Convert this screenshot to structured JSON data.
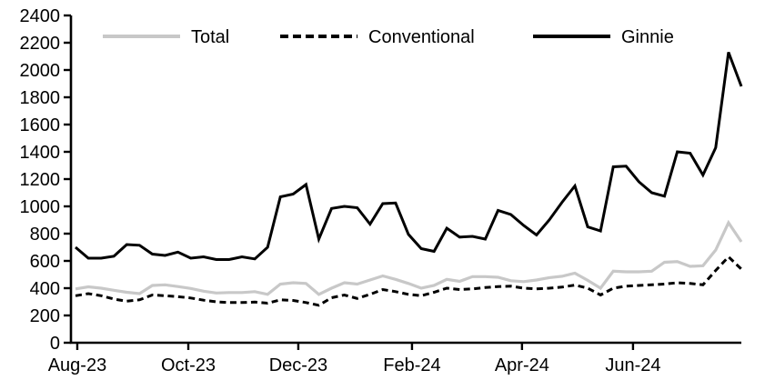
{
  "chart_data": {
    "type": "line",
    "title": "",
    "x_unit": "weekly",
    "n_points": 53,
    "ylim": [
      0,
      2400
    ],
    "ytick_step": 200,
    "grid": "off",
    "legend_position": "top-inside",
    "x_tick_labels": [
      "Aug-23",
      "Oct-23",
      "Dec-23",
      "Feb-24",
      "Apr-24",
      "Jun-24"
    ],
    "x_tick_week_positions": [
      0.14,
      8.81,
      17.4,
      26.28,
      34.87,
      43.54
    ],
    "series": [
      {
        "name": "Total",
        "color": "#c8c8c8",
        "dash": null,
        "width": 3.2,
        "values": [
          395,
          410,
          400,
          385,
          370,
          360,
          420,
          425,
          412,
          398,
          378,
          365,
          368,
          368,
          375,
          355,
          430,
          440,
          435,
          355,
          400,
          440,
          430,
          460,
          490,
          465,
          435,
          400,
          420,
          465,
          450,
          485,
          485,
          480,
          455,
          448,
          460,
          477,
          487,
          510,
          457,
          400,
          525,
          520,
          520,
          525,
          590,
          595,
          560,
          565,
          680,
          880,
          740
        ]
      },
      {
        "name": "Conventional",
        "color": "#000000",
        "dash": "7 4.5",
        "width": 3,
        "values": [
          345,
          360,
          345,
          320,
          305,
          315,
          350,
          345,
          338,
          328,
          312,
          300,
          295,
          295,
          298,
          290,
          315,
          310,
          295,
          275,
          330,
          350,
          325,
          355,
          390,
          375,
          355,
          345,
          370,
          400,
          390,
          395,
          405,
          412,
          415,
          400,
          395,
          400,
          408,
          423,
          400,
          350,
          400,
          415,
          420,
          425,
          430,
          440,
          435,
          425,
          530,
          630,
          540
        ]
      },
      {
        "name": "Ginnie",
        "color": "#000000",
        "dash": null,
        "width": 3,
        "values": [
          700,
          620,
          620,
          635,
          720,
          715,
          650,
          640,
          665,
          620,
          630,
          610,
          610,
          630,
          615,
          700,
          1070,
          1090,
          1160,
          760,
          985,
          1000,
          990,
          870,
          1020,
          1025,
          795,
          690,
          670,
          840,
          775,
          780,
          760,
          970,
          940,
          860,
          790,
          900,
          1030,
          1150,
          850,
          820,
          1290,
          1295,
          1180,
          1100,
          1075,
          1400,
          1390,
          1230,
          1430,
          2130,
          1880
        ]
      }
    ],
    "legend_items": [
      "Total",
      "Conventional",
      "Ginnie"
    ],
    "legend_x_positions": [
      113,
      308,
      586
    ],
    "colors": {
      "axis": "#000000",
      "background": "#ffffff",
      "total_line": "#c8c8c8",
      "black_line": "#000000"
    }
  }
}
